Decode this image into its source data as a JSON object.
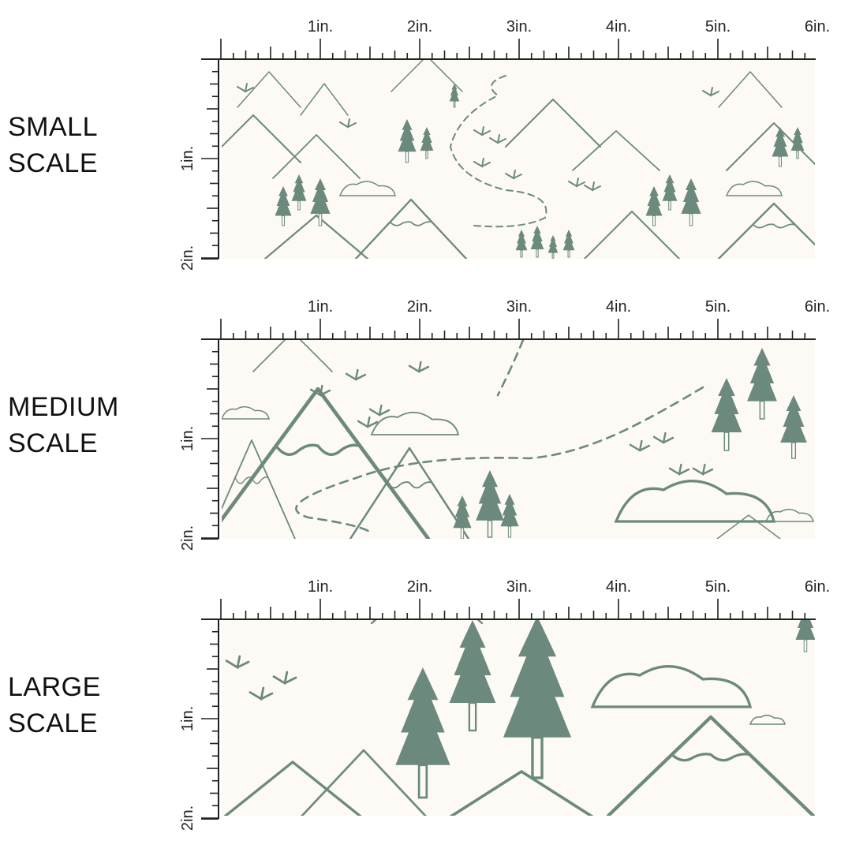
{
  "colors": {
    "fabric_background": "#fdf9f4",
    "print": "#6b8a7d",
    "ruler": "#222222"
  },
  "ruler": {
    "top_labels": [
      "1in.",
      "2in.",
      "3in.",
      "4in.",
      "5in.",
      "6in."
    ],
    "side_labels": [
      "1in.",
      "2in."
    ]
  },
  "scales": [
    {
      "line1": "SMALL",
      "line2": "SCALE"
    },
    {
      "line1": "MEDIUM",
      "line2": "SCALE"
    },
    {
      "line1": "LARGE",
      "line2": "SCALE"
    }
  ],
  "pattern": {
    "motifs": [
      "mountain",
      "pine-tree",
      "dashed-trail",
      "grass-tuft",
      "cloud"
    ]
  }
}
